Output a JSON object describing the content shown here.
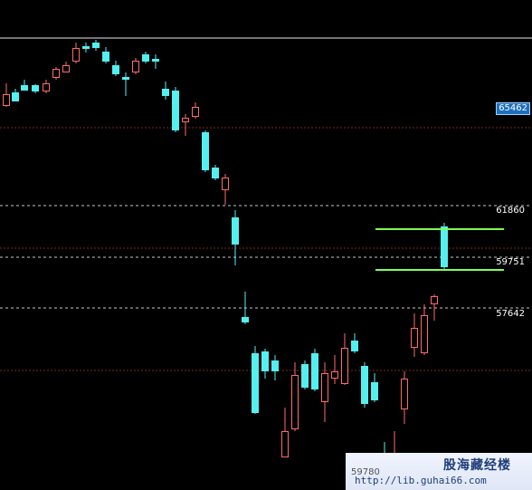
{
  "chart": {
    "price_labels": [
      "65462",
      "61860",
      "59751",
      "57642"
    ],
    "low_label": "59780"
  },
  "watermark": {
    "title": "股海藏经楼",
    "url": "http://lib.guhai66.com"
  },
  "colors": {
    "background": "#000000",
    "bear_candle": "#54f0f0",
    "bull_candle": "#ff6b6b",
    "guide_line": "#7cff5a",
    "dashed_line": "#c8c8c8",
    "price_box": "#1f6fbf"
  },
  "chart_data": {
    "type": "candlestick",
    "price_levels": [
      65462,
      61860,
      59751,
      57642
    ],
    "low_marker": 59780
  }
}
